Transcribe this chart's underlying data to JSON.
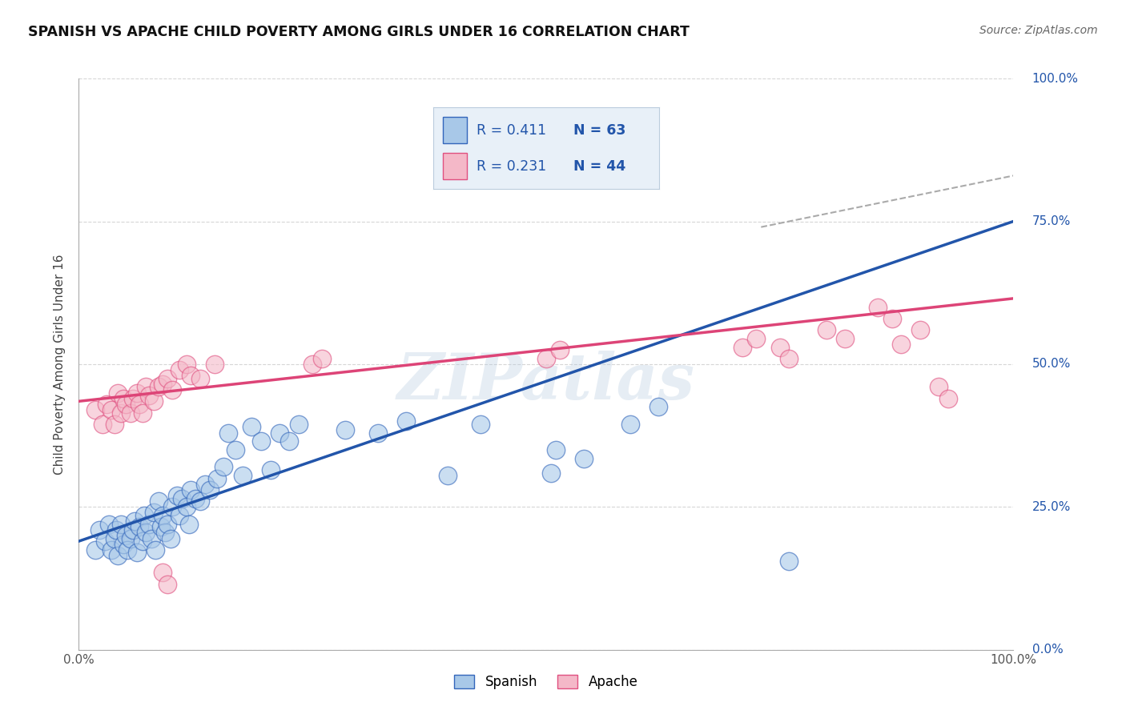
{
  "title": "SPANISH VS APACHE CHILD POVERTY AMONG GIRLS UNDER 16 CORRELATION CHART",
  "source": "Source: ZipAtlas.com",
  "ylabel": "Child Poverty Among Girls Under 16",
  "xlim": [
    0,
    1
  ],
  "ylim": [
    0,
    1
  ],
  "ytick_positions": [
    0,
    0.25,
    0.5,
    0.75,
    1.0
  ],
  "ytick_labels": [
    "0.0%",
    "25.0%",
    "50.0%",
    "75.0%",
    "100.0%"
  ],
  "watermark": "ZIPatlas",
  "legend_r1": "R = 0.411",
  "legend_n1": "N = 63",
  "legend_r2": "R = 0.231",
  "legend_n2": "N = 44",
  "blue_fill": "#a8c8e8",
  "blue_edge": "#3366bb",
  "pink_fill": "#f4b8c8",
  "pink_edge": "#e05080",
  "blue_line_color": "#2255aa",
  "pink_line_color": "#dd4477",
  "r_color": "#2255aa",
  "background_color": "#ffffff",
  "grid_color": "#cccccc",
  "legend_box_color": "#e8f0f8",
  "legend_box_edge": "#bbccdd",
  "spanish_points": [
    [
      0.018,
      0.175
    ],
    [
      0.022,
      0.21
    ],
    [
      0.028,
      0.19
    ],
    [
      0.032,
      0.22
    ],
    [
      0.035,
      0.175
    ],
    [
      0.038,
      0.195
    ],
    [
      0.04,
      0.21
    ],
    [
      0.042,
      0.165
    ],
    [
      0.045,
      0.22
    ],
    [
      0.048,
      0.185
    ],
    [
      0.05,
      0.2
    ],
    [
      0.052,
      0.175
    ],
    [
      0.055,
      0.195
    ],
    [
      0.058,
      0.21
    ],
    [
      0.06,
      0.225
    ],
    [
      0.062,
      0.17
    ],
    [
      0.065,
      0.215
    ],
    [
      0.068,
      0.19
    ],
    [
      0.07,
      0.235
    ],
    [
      0.072,
      0.205
    ],
    [
      0.075,
      0.22
    ],
    [
      0.078,
      0.195
    ],
    [
      0.08,
      0.24
    ],
    [
      0.082,
      0.175
    ],
    [
      0.085,
      0.26
    ],
    [
      0.088,
      0.215
    ],
    [
      0.09,
      0.235
    ],
    [
      0.092,
      0.205
    ],
    [
      0.095,
      0.22
    ],
    [
      0.098,
      0.195
    ],
    [
      0.1,
      0.25
    ],
    [
      0.105,
      0.27
    ],
    [
      0.108,
      0.235
    ],
    [
      0.11,
      0.265
    ],
    [
      0.115,
      0.25
    ],
    [
      0.118,
      0.22
    ],
    [
      0.12,
      0.28
    ],
    [
      0.125,
      0.265
    ],
    [
      0.13,
      0.26
    ],
    [
      0.135,
      0.29
    ],
    [
      0.14,
      0.28
    ],
    [
      0.148,
      0.3
    ],
    [
      0.155,
      0.32
    ],
    [
      0.16,
      0.38
    ],
    [
      0.168,
      0.35
    ],
    [
      0.175,
      0.305
    ],
    [
      0.185,
      0.39
    ],
    [
      0.195,
      0.365
    ],
    [
      0.205,
      0.315
    ],
    [
      0.215,
      0.38
    ],
    [
      0.225,
      0.365
    ],
    [
      0.235,
      0.395
    ],
    [
      0.285,
      0.385
    ],
    [
      0.32,
      0.38
    ],
    [
      0.35,
      0.4
    ],
    [
      0.395,
      0.305
    ],
    [
      0.43,
      0.395
    ],
    [
      0.505,
      0.31
    ],
    [
      0.51,
      0.35
    ],
    [
      0.54,
      0.335
    ],
    [
      0.59,
      0.395
    ],
    [
      0.62,
      0.425
    ],
    [
      0.76,
      0.155
    ]
  ],
  "apache_points": [
    [
      0.018,
      0.42
    ],
    [
      0.025,
      0.395
    ],
    [
      0.03,
      0.43
    ],
    [
      0.035,
      0.42
    ],
    [
      0.038,
      0.395
    ],
    [
      0.042,
      0.45
    ],
    [
      0.045,
      0.415
    ],
    [
      0.048,
      0.44
    ],
    [
      0.05,
      0.43
    ],
    [
      0.055,
      0.415
    ],
    [
      0.058,
      0.44
    ],
    [
      0.062,
      0.45
    ],
    [
      0.065,
      0.43
    ],
    [
      0.068,
      0.415
    ],
    [
      0.072,
      0.46
    ],
    [
      0.075,
      0.445
    ],
    [
      0.08,
      0.435
    ],
    [
      0.085,
      0.46
    ],
    [
      0.09,
      0.465
    ],
    [
      0.095,
      0.475
    ],
    [
      0.1,
      0.455
    ],
    [
      0.108,
      0.49
    ],
    [
      0.115,
      0.5
    ],
    [
      0.12,
      0.48
    ],
    [
      0.09,
      0.135
    ],
    [
      0.095,
      0.115
    ],
    [
      0.13,
      0.475
    ],
    [
      0.145,
      0.5
    ],
    [
      0.25,
      0.5
    ],
    [
      0.26,
      0.51
    ],
    [
      0.5,
      0.51
    ],
    [
      0.515,
      0.525
    ],
    [
      0.71,
      0.53
    ],
    [
      0.725,
      0.545
    ],
    [
      0.75,
      0.53
    ],
    [
      0.76,
      0.51
    ],
    [
      0.8,
      0.56
    ],
    [
      0.82,
      0.545
    ],
    [
      0.855,
      0.6
    ],
    [
      0.87,
      0.58
    ],
    [
      0.88,
      0.535
    ],
    [
      0.9,
      0.56
    ],
    [
      0.92,
      0.46
    ],
    [
      0.93,
      0.44
    ]
  ],
  "blue_line": [
    0.0,
    0.19,
    1.0,
    0.75
  ],
  "pink_line": [
    0.0,
    0.435,
    1.0,
    0.615
  ],
  "dash_line": [
    0.73,
    0.74,
    1.0,
    0.83
  ]
}
